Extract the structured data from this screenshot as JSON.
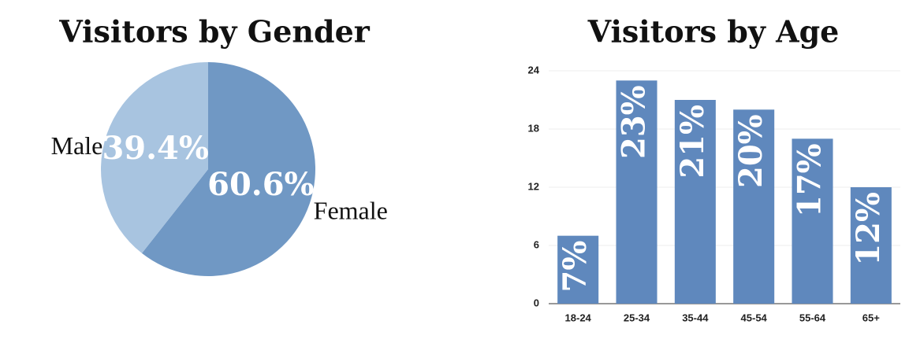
{
  "chart_data": [
    {
      "type": "pie",
      "title": "Visitors by Gender",
      "categories": [
        "Male",
        "Female"
      ],
      "values": [
        39.4,
        60.6
      ],
      "value_labels": [
        "39.4%",
        "60.6%"
      ],
      "colors": [
        "#a8c4e0",
        "#7098c4"
      ]
    },
    {
      "type": "bar",
      "title": "Visitors by Age",
      "categories": [
        "18-24",
        "25-34",
        "35-44",
        "45-54",
        "55-64",
        "65+"
      ],
      "values": [
        7,
        23,
        21,
        20,
        17,
        12
      ],
      "value_labels": [
        "7%",
        "23%",
        "21%",
        "20%",
        "17%",
        "12%"
      ],
      "color": "#5f88bd",
      "ylim": [
        0,
        24
      ],
      "yticks": [
        0,
        6,
        12,
        18,
        24
      ],
      "grid": true
    }
  ]
}
